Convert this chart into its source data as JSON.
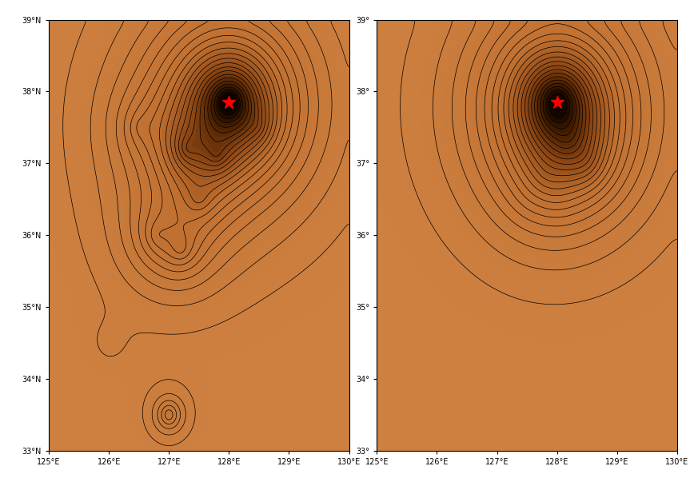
{
  "lon_min": 125.0,
  "lon_max": 130.0,
  "lat_min": 33.0,
  "lat_max": 39.0,
  "lon_ticks": [
    125,
    126,
    127,
    128,
    129,
    130
  ],
  "lat_ticks": [
    33,
    34,
    35,
    36,
    37,
    38,
    39
  ],
  "epicenter_lon": 128.0,
  "epicenter_lat": 37.85,
  "star_color": "#ff0000",
  "star_size": 120,
  "background_color": "#ffffff",
  "ocean_color": "#ffffff",
  "land_base_color": "#cd8040",
  "contour_color": "#000000",
  "contour_linewidth": 0.5,
  "colormap_dark": "#000000",
  "colormap_light": "#cd8040",
  "figsize": [
    8.73,
    6.13
  ],
  "dpi": 100
}
